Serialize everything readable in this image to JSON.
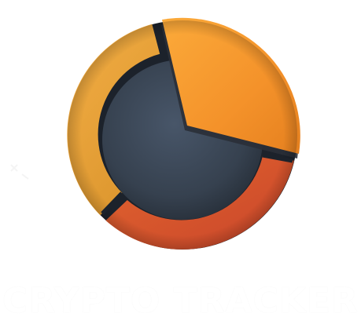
{
  "logo": {
    "wordmark": "CRYPTO TRACKER",
    "icon": "pie-chart-icon",
    "colors": {
      "background": "#ffffff",
      "orange_top": "#f7952c",
      "amber_left": "#eea43a",
      "red_bottom": "#d9562c",
      "slate_center": "#3a4656",
      "dark_groove": "#1c222b",
      "wordmark": "#ffffff"
    }
  }
}
